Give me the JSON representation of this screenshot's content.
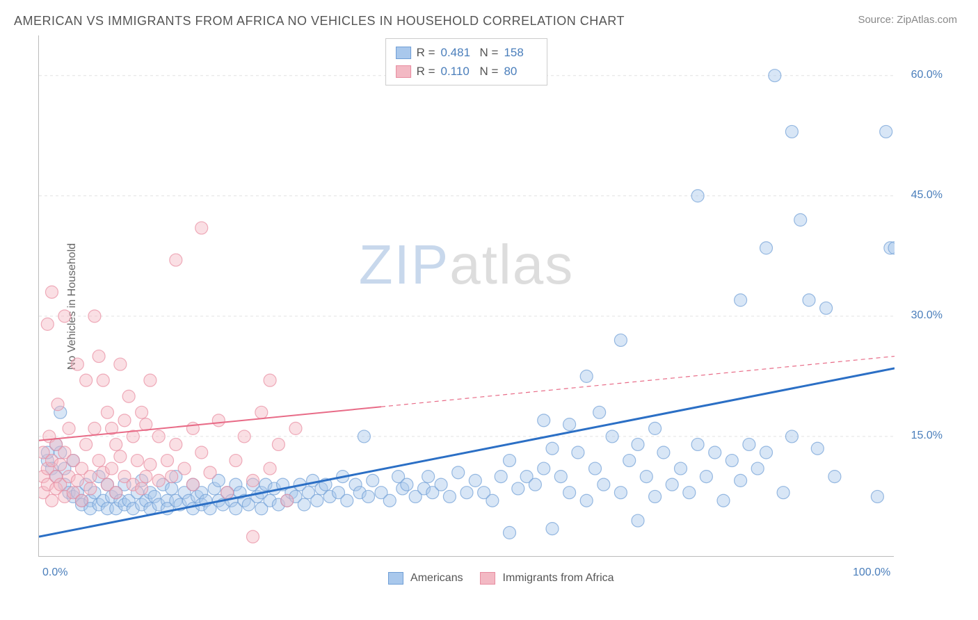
{
  "header": {
    "title": "AMERICAN VS IMMIGRANTS FROM AFRICA NO VEHICLES IN HOUSEHOLD CORRELATION CHART",
    "source": "Source: ZipAtlas.com"
  },
  "watermark": {
    "zip": "ZIP",
    "atlas": "atlas"
  },
  "chart": {
    "type": "scatter",
    "y_axis_label": "No Vehicles in Household",
    "background_color": "#ffffff",
    "grid_color": "#e2e2e2",
    "axis_color": "#bbbbbb",
    "xlim": [
      0,
      100
    ],
    "ylim": [
      0,
      65
    ],
    "x_ticks": [
      0,
      10,
      20,
      30,
      40,
      50,
      60,
      70,
      80,
      90,
      100
    ],
    "x_tick_labels": {
      "0": "0.0%",
      "100": "100.0%"
    },
    "y_gridlines": [
      15,
      30,
      45,
      60
    ],
    "y_tick_labels": {
      "15": "15.0%",
      "30": "30.0%",
      "45": "45.0%",
      "60": "60.0%"
    },
    "marker_radius": 9,
    "marker_opacity": 0.45,
    "series": [
      {
        "name": "Americans",
        "color_fill": "#a9c8ec",
        "color_stroke": "#6f9ed6",
        "legend_label": "Americans",
        "R": "0.481",
        "N": "158",
        "trend": {
          "color": "#2b6fc5",
          "width": 3,
          "x1": 0,
          "y1": 2.5,
          "x2": 100,
          "y2": 23.5,
          "dash_after_x": null
        },
        "points": [
          [
            1,
            12
          ],
          [
            1,
            13
          ],
          [
            1.5,
            11
          ],
          [
            2,
            14
          ],
          [
            2,
            10
          ],
          [
            2.5,
            13
          ],
          [
            2.5,
            18
          ],
          [
            3,
            11
          ],
          [
            3,
            9
          ],
          [
            3.5,
            8
          ],
          [
            4,
            7.5
          ],
          [
            4,
            12
          ],
          [
            4.5,
            8
          ],
          [
            5,
            7
          ],
          [
            5,
            6.5
          ],
          [
            5.5,
            9
          ],
          [
            6,
            7
          ],
          [
            6,
            6
          ],
          [
            6.5,
            8
          ],
          [
            7,
            6.5
          ],
          [
            7,
            10
          ],
          [
            7.5,
            7
          ],
          [
            8,
            6
          ],
          [
            8,
            9
          ],
          [
            8.5,
            7.5
          ],
          [
            9,
            6
          ],
          [
            9,
            8
          ],
          [
            9.5,
            7
          ],
          [
            10,
            6.5
          ],
          [
            10,
            9
          ],
          [
            10.5,
            7
          ],
          [
            11,
            6
          ],
          [
            11.5,
            8
          ],
          [
            12,
            6.5
          ],
          [
            12,
            9.5
          ],
          [
            12.5,
            7
          ],
          [
            13,
            6
          ],
          [
            13,
            8
          ],
          [
            13.5,
            7.5
          ],
          [
            14,
            6.5
          ],
          [
            14.5,
            9
          ],
          [
            15,
            7
          ],
          [
            15,
            6
          ],
          [
            15.5,
            8.5
          ],
          [
            16,
            7
          ],
          [
            16,
            10
          ],
          [
            16.5,
            6.5
          ],
          [
            17,
            8
          ],
          [
            17.5,
            7
          ],
          [
            18,
            6
          ],
          [
            18,
            9
          ],
          [
            18.5,
            7.5
          ],
          [
            19,
            6.5
          ],
          [
            19,
            8
          ],
          [
            19.5,
            7
          ],
          [
            20,
            6
          ],
          [
            20.5,
            8.5
          ],
          [
            21,
            7
          ],
          [
            21,
            9.5
          ],
          [
            21.5,
            6.5
          ],
          [
            22,
            8
          ],
          [
            22.5,
            7
          ],
          [
            23,
            6
          ],
          [
            23,
            9
          ],
          [
            23.5,
            8
          ],
          [
            24,
            7
          ],
          [
            24.5,
            6.5
          ],
          [
            25,
            9
          ],
          [
            25.5,
            7.5
          ],
          [
            26,
            8
          ],
          [
            26,
            6
          ],
          [
            26.5,
            9
          ],
          [
            27,
            7
          ],
          [
            27.5,
            8.5
          ],
          [
            28,
            6.5
          ],
          [
            28.5,
            9
          ],
          [
            29,
            7
          ],
          [
            29.5,
            8
          ],
          [
            30,
            7.5
          ],
          [
            30.5,
            9
          ],
          [
            31,
            6.5
          ],
          [
            31.5,
            8
          ],
          [
            32,
            9.5
          ],
          [
            32.5,
            7
          ],
          [
            33,
            8.5
          ],
          [
            33.5,
            9
          ],
          [
            34,
            7.5
          ],
          [
            35,
            8
          ],
          [
            35.5,
            10
          ],
          [
            36,
            7
          ],
          [
            37,
            9
          ],
          [
            37.5,
            8
          ],
          [
            38,
            15
          ],
          [
            38.5,
            7.5
          ],
          [
            39,
            9.5
          ],
          [
            40,
            8
          ],
          [
            41,
            7
          ],
          [
            42,
            10
          ],
          [
            42.5,
            8.5
          ],
          [
            43,
            9
          ],
          [
            44,
            7.5
          ],
          [
            45,
            8.5
          ],
          [
            45.5,
            10
          ],
          [
            46,
            8
          ],
          [
            47,
            9
          ],
          [
            48,
            7.5
          ],
          [
            49,
            10.5
          ],
          [
            50,
            8
          ],
          [
            51,
            9.5
          ],
          [
            52,
            8
          ],
          [
            53,
            7
          ],
          [
            54,
            10
          ],
          [
            55,
            3
          ],
          [
            55,
            12
          ],
          [
            56,
            8.5
          ],
          [
            57,
            10
          ],
          [
            58,
            9
          ],
          [
            59,
            11
          ],
          [
            59,
            17
          ],
          [
            60,
            3.5
          ],
          [
            60,
            13.5
          ],
          [
            61,
            10
          ],
          [
            62,
            8
          ],
          [
            62,
            16.5
          ],
          [
            63,
            13
          ],
          [
            64,
            7
          ],
          [
            64,
            22.5
          ],
          [
            65,
            11
          ],
          [
            65.5,
            18
          ],
          [
            66,
            9
          ],
          [
            67,
            15
          ],
          [
            68,
            8
          ],
          [
            68,
            27
          ],
          [
            69,
            12
          ],
          [
            70,
            4.5
          ],
          [
            70,
            14
          ],
          [
            71,
            10
          ],
          [
            72,
            7.5
          ],
          [
            72,
            16
          ],
          [
            73,
            13
          ],
          [
            74,
            9
          ],
          [
            75,
            11
          ],
          [
            76,
            8
          ],
          [
            77,
            14
          ],
          [
            77,
            45
          ],
          [
            78,
            10
          ],
          [
            79,
            13
          ],
          [
            80,
            7
          ],
          [
            81,
            12
          ],
          [
            82,
            9.5
          ],
          [
            82,
            32
          ],
          [
            83,
            14
          ],
          [
            84,
            11
          ],
          [
            85,
            38.5
          ],
          [
            85,
            13
          ],
          [
            86,
            60
          ],
          [
            87,
            8
          ],
          [
            88,
            53
          ],
          [
            88,
            15
          ],
          [
            89,
            42
          ],
          [
            90,
            32
          ],
          [
            91,
            13.5
          ],
          [
            92,
            31
          ],
          [
            93,
            10
          ],
          [
            98,
            7.5
          ],
          [
            99,
            53
          ],
          [
            99.5,
            38.5
          ],
          [
            100,
            38.5
          ]
        ]
      },
      {
        "name": "Immigrants from Africa",
        "color_fill": "#f3b9c4",
        "color_stroke": "#e88ca0",
        "legend_label": "Immigrants from Africa",
        "R": "0.110",
        "N": "80",
        "trend": {
          "color": "#e86b87",
          "width": 2,
          "x1": 0,
          "y1": 14.5,
          "x2": 100,
          "y2": 25,
          "dash_after_x": 40
        },
        "points": [
          [
            0.5,
            8
          ],
          [
            0.5,
            10
          ],
          [
            0.5,
            13
          ],
          [
            1,
            11
          ],
          [
            1,
            9
          ],
          [
            1,
            29
          ],
          [
            1.2,
            15
          ],
          [
            1.5,
            7
          ],
          [
            1.5,
            12
          ],
          [
            1.5,
            33
          ],
          [
            2,
            10
          ],
          [
            2,
            8.5
          ],
          [
            2,
            14
          ],
          [
            2.2,
            19
          ],
          [
            2.5,
            9
          ],
          [
            2.5,
            11.5
          ],
          [
            3,
            7.5
          ],
          [
            3,
            13
          ],
          [
            3,
            30
          ],
          [
            3.5,
            10
          ],
          [
            3.5,
            16
          ],
          [
            4,
            8
          ],
          [
            4,
            12
          ],
          [
            4.5,
            9.5
          ],
          [
            4.5,
            24
          ],
          [
            5,
            11
          ],
          [
            5,
            7
          ],
          [
            5.5,
            14
          ],
          [
            5.5,
            22
          ],
          [
            6,
            10
          ],
          [
            6,
            8.5
          ],
          [
            6.5,
            16
          ],
          [
            6.5,
            30
          ],
          [
            7,
            12
          ],
          [
            7,
            25
          ],
          [
            7.5,
            10.5
          ],
          [
            7.5,
            22
          ],
          [
            8,
            9
          ],
          [
            8,
            18
          ],
          [
            8.5,
            11
          ],
          [
            8.5,
            16
          ],
          [
            9,
            8
          ],
          [
            9,
            14
          ],
          [
            9.5,
            12.5
          ],
          [
            9.5,
            24
          ],
          [
            10,
            10
          ],
          [
            10,
            17
          ],
          [
            10.5,
            20
          ],
          [
            11,
            9
          ],
          [
            11,
            15
          ],
          [
            11.5,
            12
          ],
          [
            12,
            8.5
          ],
          [
            12,
            18
          ],
          [
            12.5,
            10
          ],
          [
            12.5,
            16.5
          ],
          [
            13,
            11.5
          ],
          [
            13,
            22
          ],
          [
            14,
            9.5
          ],
          [
            14,
            15
          ],
          [
            15,
            12
          ],
          [
            15.5,
            10
          ],
          [
            16,
            14
          ],
          [
            16,
            37
          ],
          [
            17,
            11
          ],
          [
            18,
            9
          ],
          [
            18,
            16
          ],
          [
            19,
            13
          ],
          [
            19,
            41
          ],
          [
            20,
            10.5
          ],
          [
            21,
            17
          ],
          [
            22,
            8
          ],
          [
            23,
            12
          ],
          [
            24,
            15
          ],
          [
            25,
            9.5
          ],
          [
            25,
            2.5
          ],
          [
            26,
            18
          ],
          [
            27,
            11
          ],
          [
            27,
            22
          ],
          [
            28,
            14
          ],
          [
            29,
            7
          ],
          [
            30,
            16
          ]
        ]
      }
    ]
  },
  "bottom_legend": {
    "series1_label": "Americans",
    "series2_label": "Immigrants from Africa"
  },
  "top_legend": {
    "r_label": "R =",
    "n_label": "N ="
  }
}
